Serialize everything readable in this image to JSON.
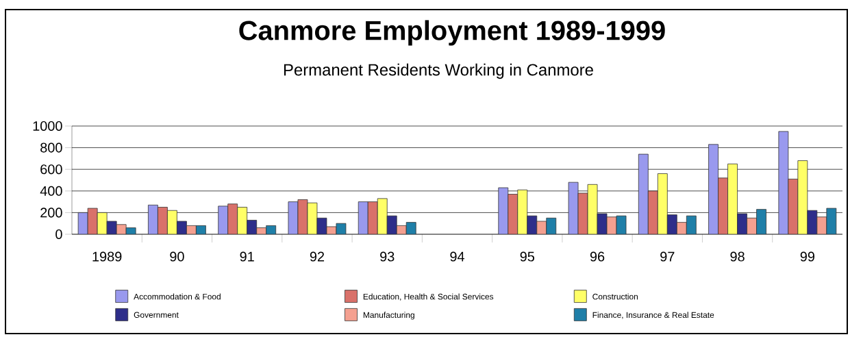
{
  "chart_data": {
    "type": "bar",
    "title": "Canmore Employment 1989-1999",
    "subtitle": "Permanent Residents Working in Canmore",
    "categories": [
      "1989",
      "90",
      "91",
      "92",
      "93",
      "94",
      "95",
      "96",
      "97",
      "98",
      "99"
    ],
    "series": [
      {
        "name": "Accommodation & Food",
        "color": "#9999ee",
        "values": [
          200,
          270,
          260,
          300,
          300,
          null,
          430,
          480,
          740,
          830,
          950
        ]
      },
      {
        "name": "Education, Health & Social Services",
        "color": "#d9716a",
        "values": [
          240,
          250,
          280,
          320,
          300,
          null,
          370,
          380,
          400,
          520,
          510
        ]
      },
      {
        "name": "Construction",
        "color": "#ffff66",
        "values": [
          200,
          220,
          250,
          290,
          330,
          null,
          410,
          460,
          560,
          650,
          680
        ]
      },
      {
        "name": "Government",
        "color": "#2e2e8a",
        "values": [
          120,
          120,
          130,
          150,
          170,
          null,
          170,
          190,
          180,
          190,
          220
        ]
      },
      {
        "name": "Manufacturing",
        "color": "#f4a090",
        "values": [
          90,
          80,
          60,
          70,
          80,
          null,
          120,
          160,
          110,
          150,
          160
        ]
      },
      {
        "name": "Finance, Insurance & Real Estate",
        "color": "#1f7fa8",
        "values": [
          60,
          80,
          80,
          100,
          110,
          null,
          150,
          170,
          170,
          230,
          240
        ]
      }
    ],
    "ylim": [
      0,
      1000
    ],
    "yticks": [
      0,
      200,
      400,
      600,
      800,
      1000
    ],
    "grid": "y",
    "legend": "bottom"
  }
}
